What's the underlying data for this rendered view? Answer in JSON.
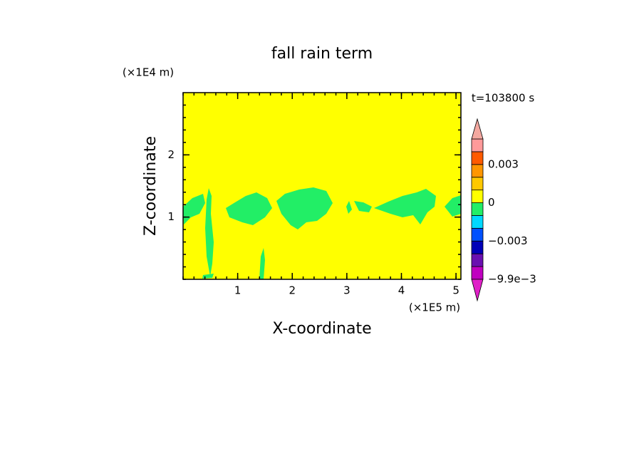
{
  "chart_data": {
    "type": "contour",
    "title": "fall rain term",
    "x_label": "X-coordinate",
    "y_label": "Z-coordinate",
    "x_unit": "(×1E5 m)",
    "y_unit": "(×1E4 m)",
    "time_label": "t=103800 s",
    "xlim": [
      0,
      5.09
    ],
    "ylim": [
      0,
      3.0
    ],
    "xticks": [
      1,
      2,
      3,
      4,
      5
    ],
    "yticks": [
      1,
      2
    ],
    "background_color": "#ffff00",
    "region_color": "#22ee66",
    "colorbar": {
      "levels": [
        -0.0099,
        -0.008,
        -0.005,
        -0.003,
        -0.002,
        -0.001,
        0,
        0.001,
        0.002,
        0.003,
        0.006,
        0.009
      ],
      "colors": [
        "#c000c0",
        "#6a10b0",
        "#0000b8",
        "#0050ff",
        "#00d8ff",
        "#22ee66",
        "#ffff00",
        "#ffc800",
        "#ff9600",
        "#ff5a00",
        "#ff9a9a"
      ],
      "under_color": "#e020c8",
      "over_color": "#f4a8a0",
      "ticks": [
        {
          "value": 0.003,
          "label": "0.003"
        },
        0,
        {
          "value": -0.003,
          "label": "−0.003"
        },
        {
          "value": -0.0099,
          "label": "−9.9e−3"
        }
      ]
    }
  }
}
